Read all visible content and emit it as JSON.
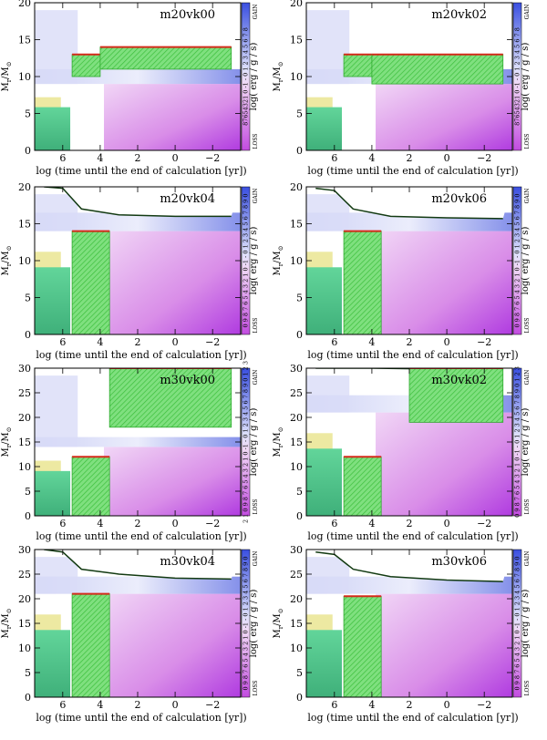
{
  "figure": {
    "xlabel": "log (time until the end of calculation [yr])",
    "ylabel_main": "M",
    "ylabel_sub": "r",
    "ylabel_rest": "/M",
    "ylabel_sun": "⊙",
    "colorbar_label": "log( erg / g / s)",
    "colorbar_gain": "GAIN",
    "colorbar_loss": "LOSS"
  },
  "colors": {
    "convective": "#5fe05f",
    "overshoot": "#d42a1a",
    "gain": "#3a4fe0",
    "loss": "#c24ce0",
    "dim_green": "#3fbf7a",
    "yellow": "#e6e07a"
  },
  "chart_data": [
    {
      "type": "heatmap",
      "title": "m20vk00",
      "xlim": [
        7.5,
        -3.5
      ],
      "ylim": [
        0,
        20
      ],
      "xticks": [
        6,
        4,
        2,
        0,
        -2
      ],
      "yticks": [
        0,
        5,
        10,
        15,
        20
      ],
      "colorbar_ticks": "87654321 0 -1 - 0 1 2 3 4 5 6 7 8",
      "surface": [],
      "conv": [
        [
          5.5,
          10,
          4,
          13
        ],
        [
          4,
          11,
          -3,
          14
        ]
      ]
    },
    {
      "type": "heatmap",
      "title": "m20vk02",
      "xlim": [
        7.5,
        -3.5
      ],
      "ylim": [
        0,
        20
      ],
      "xticks": [
        6,
        4,
        2,
        0,
        -2
      ],
      "yticks": [
        0,
        5,
        10,
        15,
        20
      ],
      "colorbar_ticks": "87654321 0 -1 - 0 1 2 3 4 5 6 7 8",
      "surface": [],
      "conv": [
        [
          5.5,
          10,
          4,
          13
        ],
        [
          4,
          9,
          -3,
          13
        ]
      ]
    },
    {
      "type": "heatmap",
      "title": "m20vk04",
      "xlim": [
        7.5,
        -3.5
      ],
      "ylim": [
        0,
        20
      ],
      "xticks": [
        6,
        4,
        2,
        0,
        -2
      ],
      "yticks": [
        0,
        5,
        10,
        15,
        20
      ],
      "colorbar_ticks": "0 9 8 7 6 5 4 3 2 1 0 -1 - 0 1 2 3 4 5 6 7 8 9 0",
      "surface": [
        [
          7,
          20
        ],
        [
          6,
          19.8
        ],
        [
          5,
          17
        ],
        [
          3,
          16.2
        ],
        [
          0,
          16
        ],
        [
          -3,
          16
        ]
      ],
      "conv": [
        [
          5.5,
          0,
          3.5,
          14
        ]
      ]
    },
    {
      "type": "heatmap",
      "title": "m20vk06",
      "xlim": [
        7.5,
        -3.5
      ],
      "ylim": [
        0,
        20
      ],
      "xticks": [
        6,
        4,
        2,
        0,
        -2
      ],
      "yticks": [
        0,
        5,
        10,
        15,
        20
      ],
      "colorbar_ticks": "0 9 8 7 6 5 4 3 2 1 0 -1 - 0 1 2 3 4 5 6 7 8 9 0",
      "surface": [
        [
          7,
          19.8
        ],
        [
          6,
          19.5
        ],
        [
          5,
          17
        ],
        [
          3,
          16
        ],
        [
          0,
          15.8
        ],
        [
          -3,
          15.7
        ]
      ],
      "conv": [
        [
          5.5,
          0,
          3.5,
          14
        ]
      ]
    },
    {
      "type": "heatmap",
      "title": "m30vk00",
      "xlim": [
        7.5,
        -3.5
      ],
      "ylim": [
        0,
        30
      ],
      "xticks": [
        6,
        4,
        2,
        0,
        -2
      ],
      "yticks": [
        0,
        5,
        10,
        15,
        20,
        25,
        30
      ],
      "colorbar_ticks": "2 1 0 9 8 7 6 5 4 3 2 1 0 -1 - 0 1 2 3 4 5 6 7 8 9 0 1 2 3",
      "surface": [],
      "conv": [
        [
          5.5,
          0,
          3.5,
          12
        ],
        [
          3.5,
          18,
          -3,
          30
        ]
      ]
    },
    {
      "type": "heatmap",
      "title": "m30vk02",
      "xlim": [
        7.5,
        -3.5
      ],
      "ylim": [
        0,
        30
      ],
      "xticks": [
        6,
        4,
        2,
        0,
        -2
      ],
      "yticks": [
        0,
        5,
        10,
        15,
        20,
        25,
        30
      ],
      "colorbar_ticks": "0 9 8 7 6 5 4 3 2 1 0 -1 - 0 1 2 3 4 5 6 7 8 9 0 1 2 3",
      "surface": [
        [
          7,
          30
        ],
        [
          4,
          30
        ],
        [
          0,
          29.8
        ],
        [
          -3,
          29.8
        ]
      ],
      "conv": [
        [
          5.5,
          0,
          3.5,
          12
        ],
        [
          2,
          19,
          -3,
          30
        ]
      ]
    },
    {
      "type": "heatmap",
      "title": "m30vk04",
      "xlim": [
        7.5,
        -3.5
      ],
      "ylim": [
        0,
        30
      ],
      "xticks": [
        6,
        4,
        2,
        0,
        -2
      ],
      "yticks": [
        0,
        5,
        10,
        15,
        20,
        25,
        30
      ],
      "colorbar_ticks": "0 9 8 7 6 5 4 3 2 1 0 -1 - 0 1 2 3 4 5 6 7 8 9 0",
      "surface": [
        [
          7,
          30
        ],
        [
          6,
          29.5
        ],
        [
          5,
          26
        ],
        [
          3,
          25
        ],
        [
          0,
          24.2
        ],
        [
          -3,
          24
        ]
      ],
      "conv": [
        [
          5.5,
          0,
          3.5,
          21
        ]
      ]
    },
    {
      "type": "heatmap",
      "title": "m30vk06",
      "xlim": [
        7.5,
        -3.5
      ],
      "ylim": [
        0,
        30
      ],
      "xticks": [
        6,
        4,
        2,
        0,
        -2
      ],
      "yticks": [
        0,
        5,
        10,
        15,
        20,
        25,
        30
      ],
      "colorbar_ticks": "0 9 8 7 6 5 4 3 2 1 0 -1 - 0 1 2 3 4 5 6 7 8 9 0",
      "surface": [
        [
          7,
          29.5
        ],
        [
          6,
          29
        ],
        [
          5,
          26
        ],
        [
          3,
          24.5
        ],
        [
          0,
          23.8
        ],
        [
          -3,
          23.5
        ]
      ],
      "conv": [
        [
          5.5,
          0,
          3.5,
          20.5
        ]
      ]
    }
  ]
}
